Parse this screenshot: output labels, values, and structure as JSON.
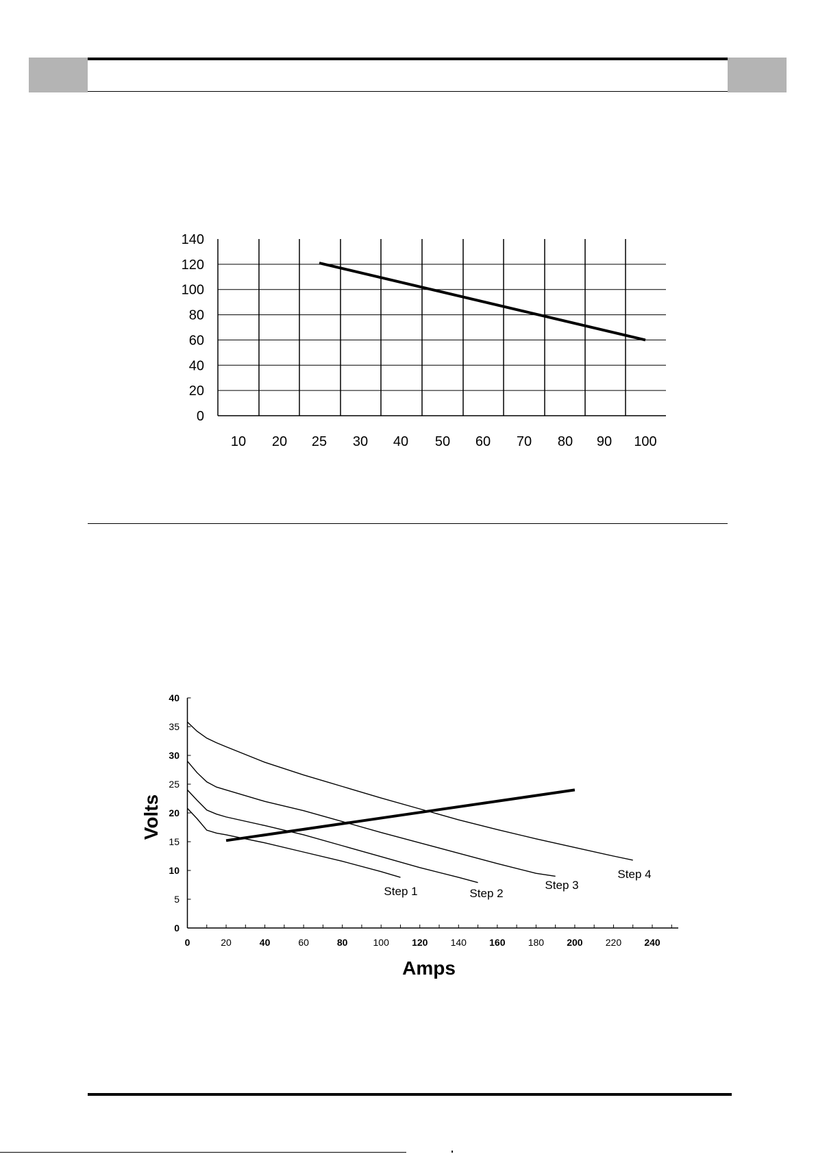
{
  "chart_data": [
    {
      "type": "line",
      "categories": [
        "10",
        "20",
        "25",
        "30",
        "40",
        "50",
        "60",
        "70",
        "80",
        "90",
        "100"
      ],
      "y_ticks": [
        "0",
        "20",
        "40",
        "60",
        "80",
        "100",
        "120",
        "140"
      ],
      "ylim": [
        0,
        140
      ],
      "grid": true,
      "series": [
        {
          "points": [
            [
              25,
              121
            ],
            [
              100,
              60
            ]
          ]
        }
      ]
    },
    {
      "type": "line",
      "xlabel": "Amps",
      "ylabel": "Volts",
      "xlim": [
        0,
        250
      ],
      "ylim": [
        0,
        40
      ],
      "x_ticks": [
        "0",
        "20",
        "40",
        "60",
        "80",
        "100",
        "120",
        "140",
        "160",
        "180",
        "200",
        "220",
        "240"
      ],
      "y_ticks": [
        "0",
        "5",
        "10",
        "15",
        "20",
        "25",
        "30",
        "35",
        "40"
      ],
      "grid": false,
      "series": [
        {
          "name": "Step 1",
          "points": [
            [
              0,
              20.8
            ],
            [
              5,
              19
            ],
            [
              10,
              17
            ],
            [
              15,
              16.5
            ],
            [
              20,
              16.2
            ],
            [
              40,
              14.8
            ],
            [
              60,
              13.2
            ],
            [
              80,
              11.6
            ],
            [
              100,
              9.8
            ],
            [
              110,
              8.8
            ]
          ]
        },
        {
          "name": "Step 2",
          "points": [
            [
              0,
              24
            ],
            [
              5,
              22.2
            ],
            [
              10,
              20.5
            ],
            [
              15,
              19.8
            ],
            [
              20,
              19.3
            ],
            [
              40,
              17.8
            ],
            [
              60,
              16.2
            ],
            [
              80,
              14.3
            ],
            [
              100,
              12.4
            ],
            [
              120,
              10.5
            ],
            [
              140,
              8.8
            ],
            [
              150,
              7.9
            ]
          ]
        },
        {
          "name": "Step 3",
          "points": [
            [
              0,
              29
            ],
            [
              5,
              27
            ],
            [
              10,
              25.4
            ],
            [
              15,
              24.5
            ],
            [
              20,
              24
            ],
            [
              40,
              22
            ],
            [
              60,
              20.4
            ],
            [
              80,
              18.5
            ],
            [
              100,
              16.6
            ],
            [
              120,
              14.8
            ],
            [
              140,
              13
            ],
            [
              160,
              11.2
            ],
            [
              180,
              9.5
            ],
            [
              190,
              9
            ]
          ]
        },
        {
          "name": "Step 4",
          "points": [
            [
              0,
              35.8
            ],
            [
              5,
              34.2
            ],
            [
              10,
              33
            ],
            [
              15,
              32.2
            ],
            [
              20,
              31.5
            ],
            [
              40,
              28.8
            ],
            [
              60,
              26.6
            ],
            [
              80,
              24.6
            ],
            [
              100,
              22.6
            ],
            [
              120,
              20.7
            ],
            [
              140,
              18.8
            ],
            [
              160,
              17.1
            ],
            [
              180,
              15.5
            ],
            [
              200,
              14
            ],
            [
              220,
              12.5
            ],
            [
              230,
              11.8
            ]
          ]
        },
        {
          "points": [
            [
              20,
              15.2
            ],
            [
              200,
              24
            ]
          ]
        }
      ]
    }
  ]
}
